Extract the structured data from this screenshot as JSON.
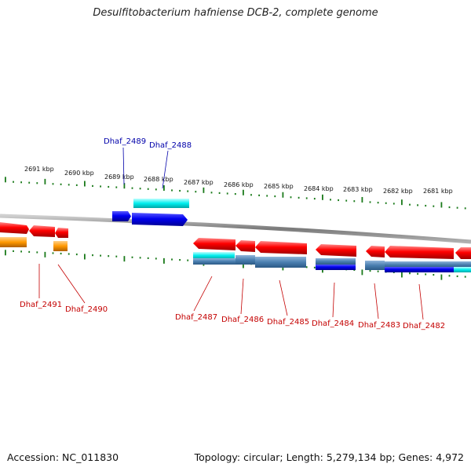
{
  "title": "Desulfitobacterium hafniense DCB-2, complete genome",
  "footer": {
    "accession": "Accession: NC_011830",
    "topology": "Topology: circular; Length: 5,279,134 bp; Genes: 4,972"
  },
  "colors": {
    "forward_gene": "#ff0000",
    "reverse_gene": "#0000ff",
    "forward_cds": "#ff9900",
    "reverse_cds": "#00e5ee",
    "ruler_tick": "#1a7a1a",
    "genome_line": "#888888",
    "label_forward": "#c40000",
    "label_reverse": "#0000aa"
  },
  "kbp_labels": [
    "2691 kbp",
    "2690 kbp",
    "2689 kbp",
    "2688 kbp",
    "2687 kbp",
    "2686 kbp",
    "2685 kbp",
    "2684 kbp",
    "2683 kbp",
    "2682 kbp",
    "2681 kbp"
  ],
  "gene_labels": [
    {
      "name": "Dhaf_2489",
      "strand": "reverse"
    },
    {
      "name": "Dhaf_2488",
      "strand": "reverse"
    },
    {
      "name": "Dhaf_2491",
      "strand": "forward"
    },
    {
      "name": "Dhaf_2490",
      "strand": "forward"
    },
    {
      "name": "Dhaf_2487",
      "strand": "forward"
    },
    {
      "name": "Dhaf_2486",
      "strand": "forward"
    },
    {
      "name": "Dhaf_2485",
      "strand": "forward"
    },
    {
      "name": "Dhaf_2484",
      "strand": "forward"
    },
    {
      "name": "Dhaf_2483",
      "strand": "forward"
    },
    {
      "name": "Dhaf_2482",
      "strand": "forward"
    }
  ]
}
